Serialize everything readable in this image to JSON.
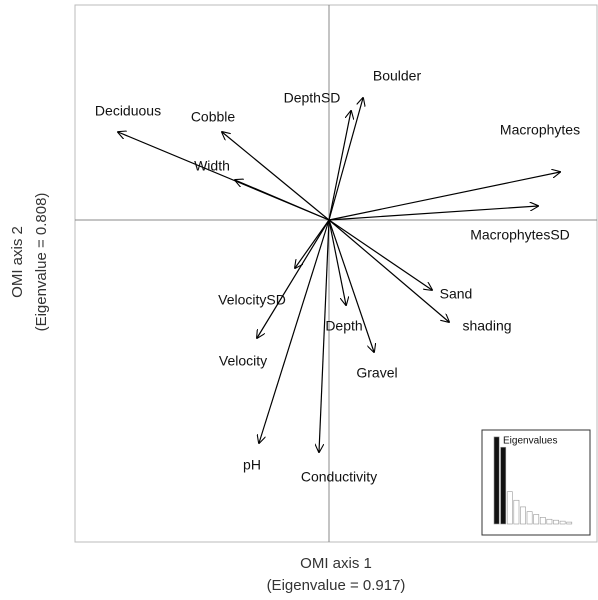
{
  "chart_data": [
    {
      "type": "biplot",
      "x_label": [
        "OMI axis 1",
        "(Eigenvalue = 0.917)"
      ],
      "y_label": [
        "OMI axis 2",
        "(Eigenvalue = 0.808)"
      ],
      "xlim": [
        -2.54,
        2.68
      ],
      "ylim": [
        -3.22,
        2.15
      ],
      "color": "#000000",
      "variables": [
        {
          "name": "Deciduous",
          "x": -2.11,
          "y": 0.88
        },
        {
          "name": "Cobble",
          "x": -1.07,
          "y": 0.88
        },
        {
          "name": "Width",
          "x": -0.94,
          "y": 0.4
        },
        {
          "name": "DepthSD",
          "x": 0.22,
          "y": 1.09
        },
        {
          "name": "Boulder",
          "x": 0.34,
          "y": 1.22
        },
        {
          "name": "Macrophytes",
          "x": 2.31,
          "y": 0.48
        },
        {
          "name": "MacrophytesSD",
          "x": 2.09,
          "y": 0.14
        },
        {
          "name": "Sand",
          "x": 1.03,
          "y": -0.7
        },
        {
          "name": "shading",
          "x": 1.2,
          "y": -1.02
        },
        {
          "name": "Gravel",
          "x": 0.45,
          "y": -1.32
        },
        {
          "name": "Depth",
          "x": 0.17,
          "y": -0.85
        },
        {
          "name": "VelocitySD",
          "x": -0.34,
          "y": -0.48
        },
        {
          "name": "Velocity",
          "x": -0.72,
          "y": -1.18
        },
        {
          "name": "pH",
          "x": -0.7,
          "y": -2.23
        },
        {
          "name": "Conductivity",
          "x": -0.1,
          "y": -2.32
        }
      ]
    },
    {
      "type": "bar",
      "title": "Eigenvalues",
      "ylim": [
        0,
        1
      ],
      "values": [
        0.917,
        0.808,
        0.34,
        0.25,
        0.18,
        0.13,
        0.1,
        0.07,
        0.05,
        0.04,
        0.03,
        0.02
      ],
      "colors": [
        "#111111",
        "#111111",
        "#ffffff",
        "#ffffff",
        "#ffffff",
        "#ffffff",
        "#ffffff",
        "#ffffff",
        "#ffffff",
        "#ffffff",
        "#ffffff",
        "#ffffff"
      ]
    }
  ]
}
